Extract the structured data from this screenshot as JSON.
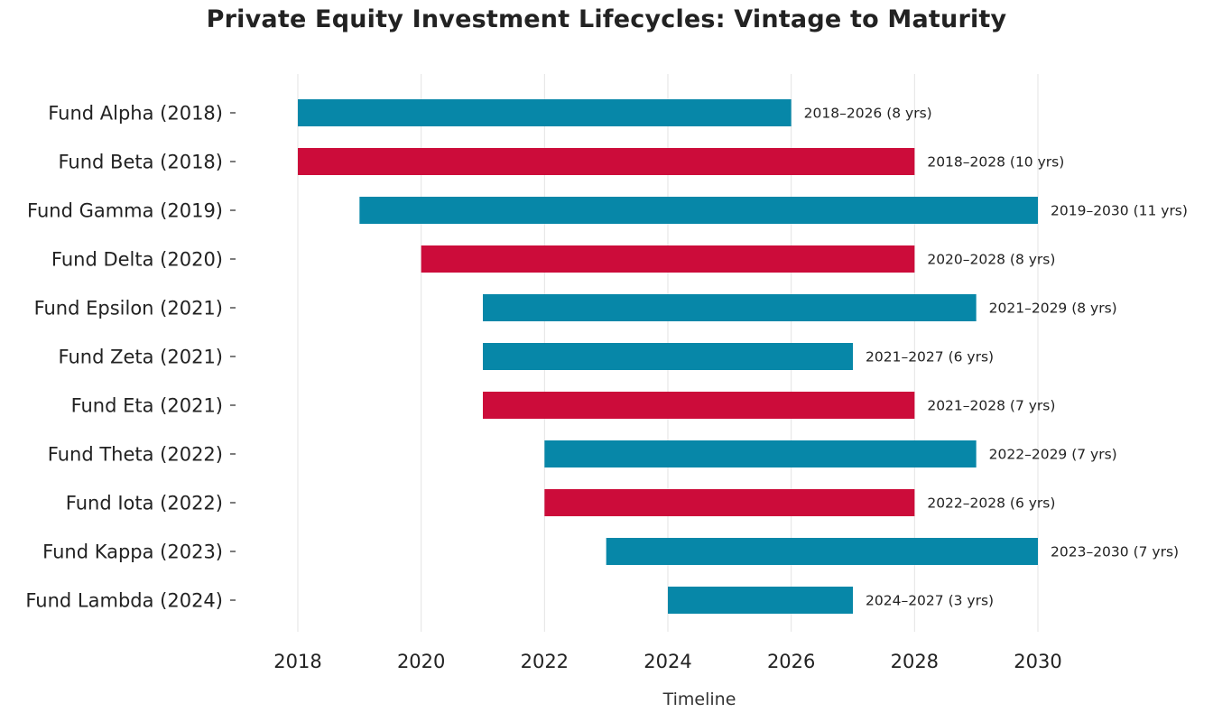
{
  "chart_data": {
    "type": "bar",
    "orientation": "horizontal",
    "title": "Private Equity Investment Lifecycles: Vintage to Maturity",
    "xlabel": "Timeline",
    "ylabel": "",
    "xlim": [
      2018,
      2030
    ],
    "xticks": [
      "2018",
      "2020",
      "2022",
      "2024",
      "2026",
      "2028",
      "2030"
    ],
    "grid": "vertical",
    "legend": "none",
    "colors": {
      "teal": "#0787a8",
      "crimson": "#cc0c3a"
    },
    "categories": [
      "Fund Alpha (2018)",
      "Fund Beta (2018)",
      "Fund Gamma (2019)",
      "Fund Delta (2020)",
      "Fund Epsilon (2021)",
      "Fund Zeta (2021)",
      "Fund Eta (2021)",
      "Fund Theta (2022)",
      "Fund Iota (2022)",
      "Fund Kappa (2023)",
      "Fund Lambda (2024)"
    ],
    "bars": [
      {
        "fund": "Fund Alpha (2018)",
        "start": 2018,
        "end": 2026,
        "color": "teal",
        "label": "2018–2026 (8 yrs)"
      },
      {
        "fund": "Fund Beta (2018)",
        "start": 2018,
        "end": 2028,
        "color": "crimson",
        "label": "2018–2028 (10 yrs)"
      },
      {
        "fund": "Fund Gamma (2019)",
        "start": 2019,
        "end": 2030,
        "color": "teal",
        "label": "2019–2030 (11 yrs)"
      },
      {
        "fund": "Fund Delta (2020)",
        "start": 2020,
        "end": 2028,
        "color": "crimson",
        "label": "2020–2028 (8 yrs)"
      },
      {
        "fund": "Fund Epsilon (2021)",
        "start": 2021,
        "end": 2029,
        "color": "teal",
        "label": "2021–2029 (8 yrs)"
      },
      {
        "fund": "Fund Zeta (2021)",
        "start": 2021,
        "end": 2027,
        "color": "teal",
        "label": "2021–2027 (6 yrs)"
      },
      {
        "fund": "Fund Eta (2021)",
        "start": 2021,
        "end": 2028,
        "color": "crimson",
        "label": "2021–2028 (7 yrs)"
      },
      {
        "fund": "Fund Theta (2022)",
        "start": 2022,
        "end": 2029,
        "color": "teal",
        "label": "2022–2029 (7 yrs)"
      },
      {
        "fund": "Fund Iota (2022)",
        "start": 2022,
        "end": 2028,
        "color": "crimson",
        "label": "2022–2028 (6 yrs)"
      },
      {
        "fund": "Fund Kappa (2023)",
        "start": 2023,
        "end": 2030,
        "color": "teal",
        "label": "2023–2030 (7 yrs)"
      },
      {
        "fund": "Fund Lambda (2024)",
        "start": 2024,
        "end": 2027,
        "color": "teal",
        "label": "2024–2027 (3 yrs)"
      }
    ]
  }
}
